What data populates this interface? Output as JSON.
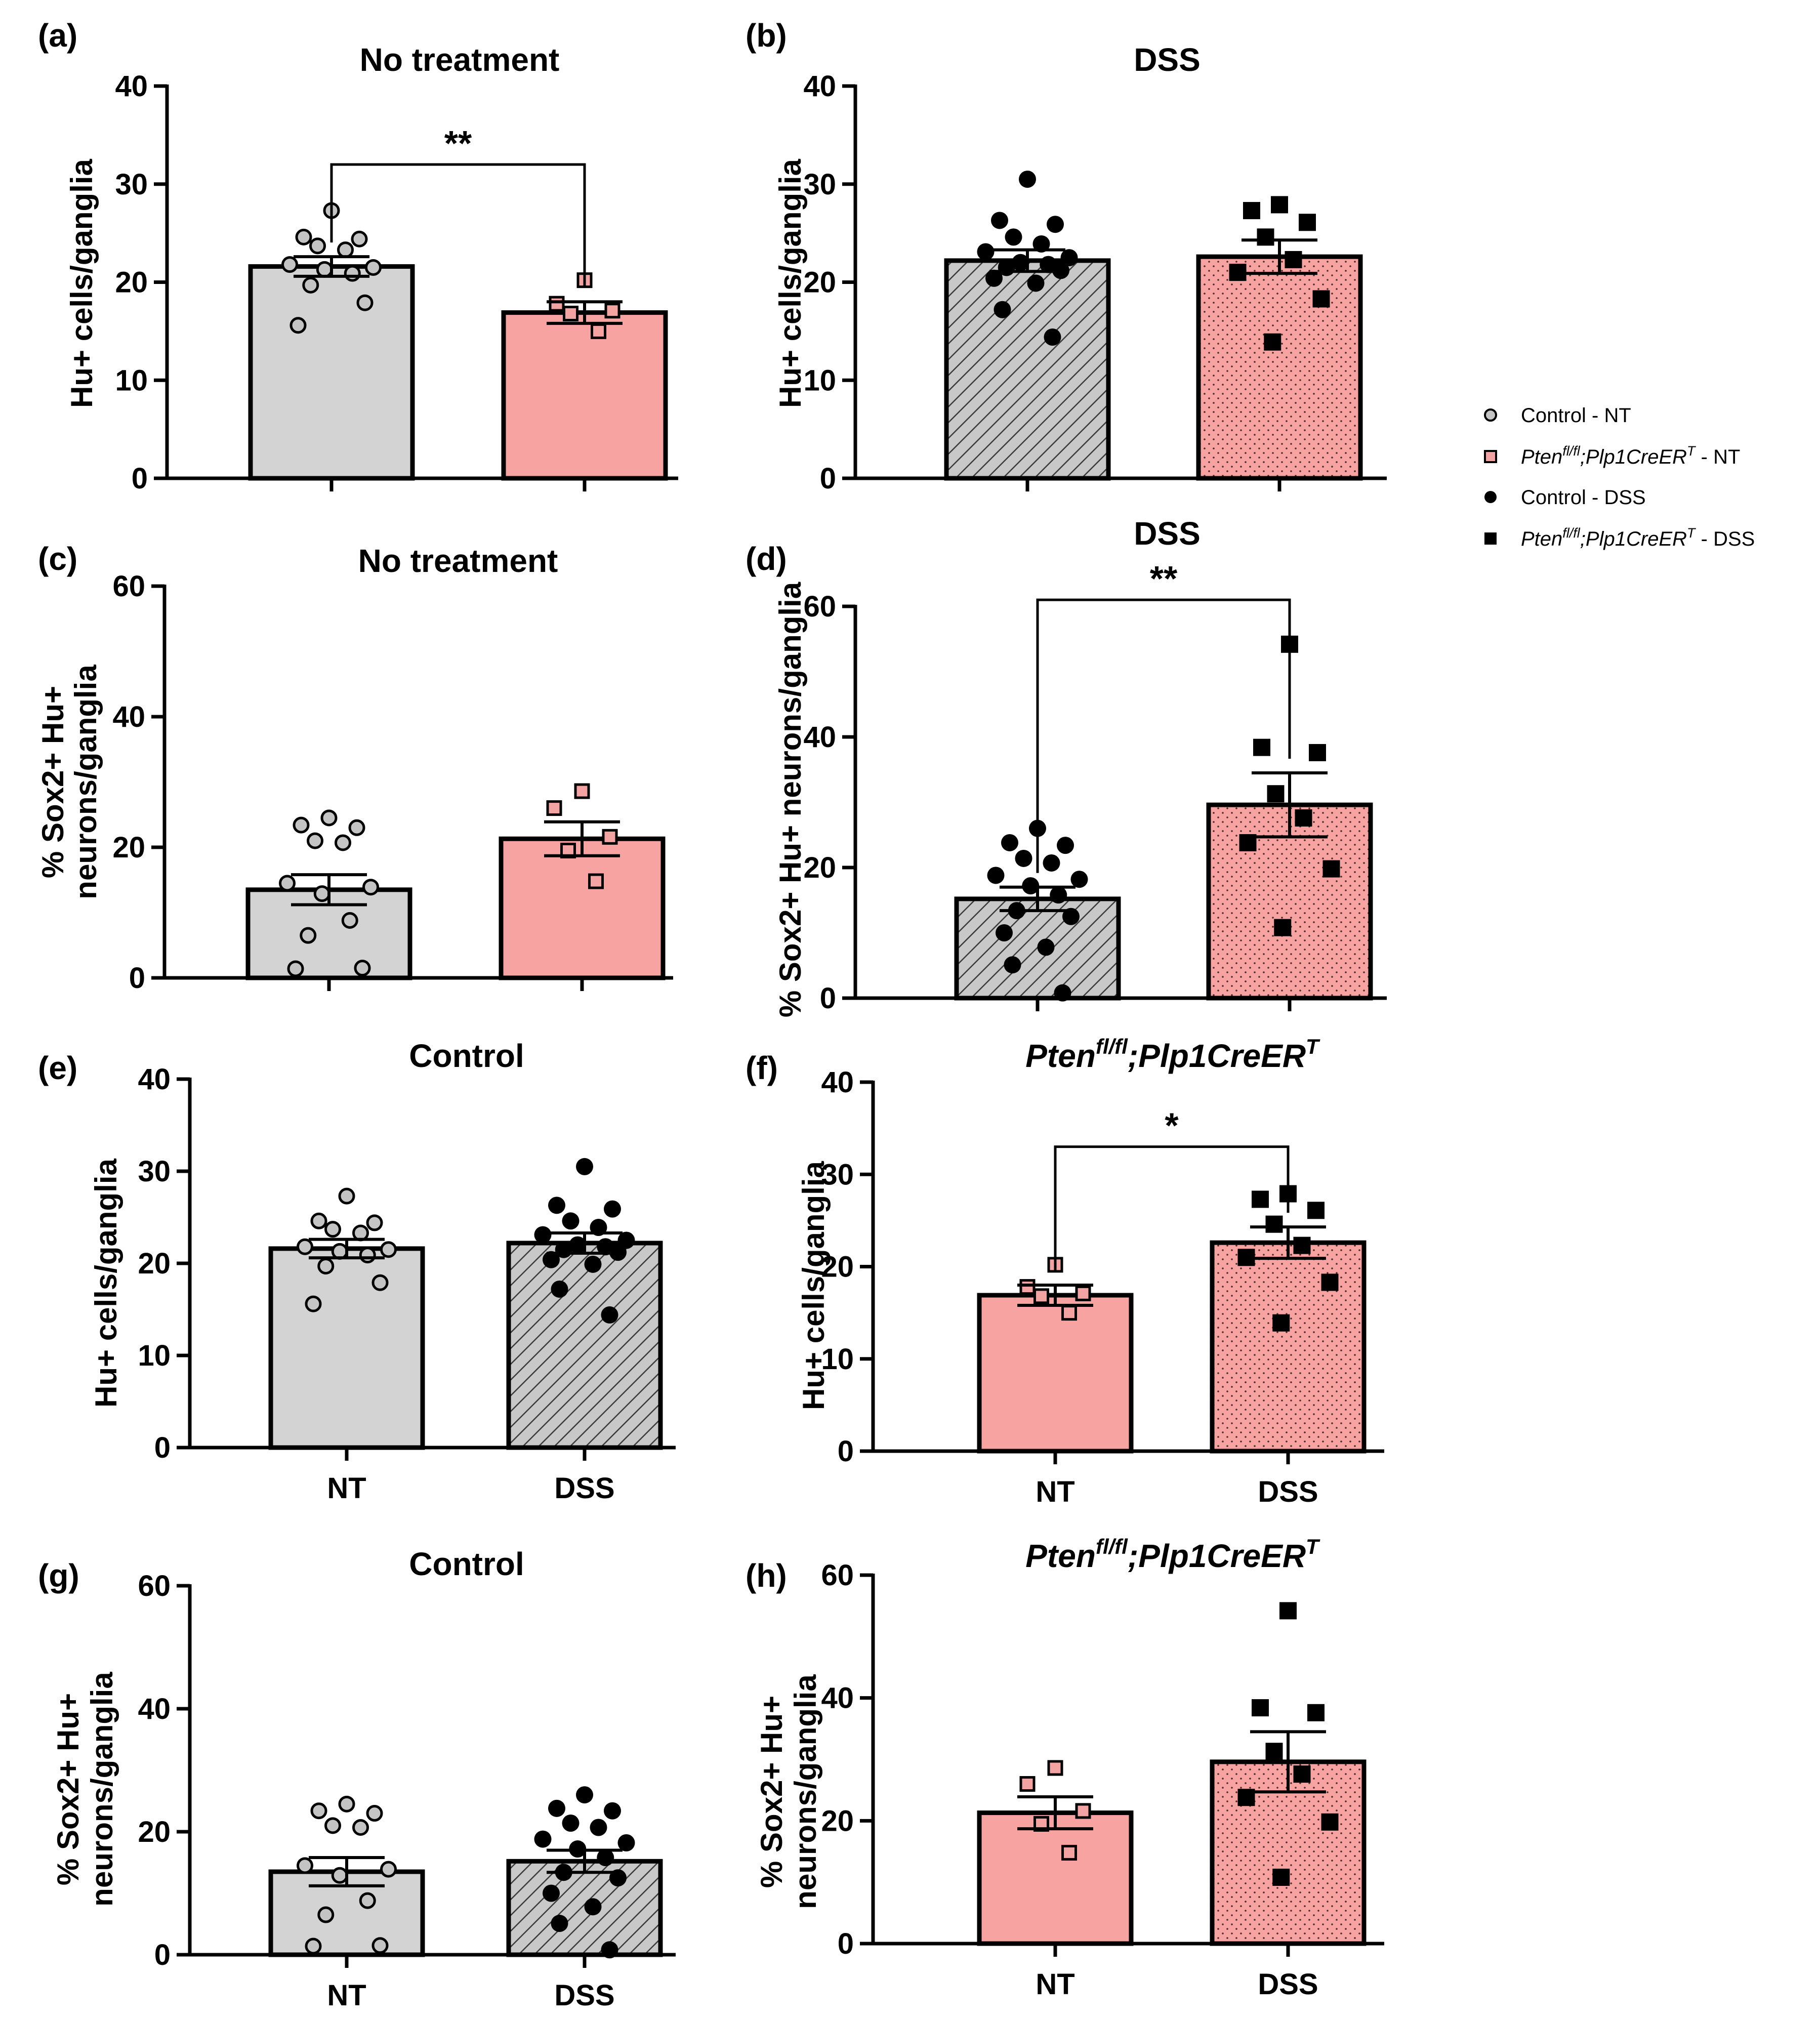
{
  "colors": {
    "control_nt": "#d3d3d3",
    "pten_nt": "#f6a3a1",
    "control_dss": "#c8c8c8",
    "pten_dss": "#f6a3a1",
    "marker_control_nt": "#c4c4c4",
    "marker_pten_nt": "#f4a3a3",
    "marker_dss": "#000000"
  },
  "legend": {
    "items": [
      {
        "key": "control_nt",
        "label": "Control - NT",
        "marker": "circle-open"
      },
      {
        "key": "pten_nt",
        "label_pre": "Pten",
        "label_sup1": "fl/fl",
        "label_mid": ";Plp1CreER",
        "label_sup2": "T",
        "label_post": " - NT",
        "marker": "square-open"
      },
      {
        "key": "control_dss",
        "label": "Control - DSS",
        "marker": "circle-filled"
      },
      {
        "key": "pten_dss",
        "label_pre": "Pten",
        "label_sup1": "fl/fl",
        "label_mid": ";Plp1CreER",
        "label_sup2": "T",
        "label_post": " - DSS",
        "marker": "square-filled"
      }
    ]
  },
  "chart_data": [
    {
      "id": "a",
      "panel_label": "(a)",
      "type": "bar",
      "title": "No treatment",
      "ylabel_lines": [
        "Hu+ cells/ganglia"
      ],
      "ylim": [
        0,
        40
      ],
      "yticks": [
        0,
        10,
        20,
        30,
        40
      ],
      "categories": [
        "",
        ""
      ],
      "bars": [
        {
          "group": "control_nt",
          "mean": 21.6,
          "sem": 1.0,
          "points": [
            27.3,
            24.6,
            24.4,
            23.7,
            23.3,
            21.8,
            21.5,
            21.3,
            20.9,
            19.7,
            17.9,
            15.6
          ]
        },
        {
          "group": "pten_nt",
          "mean": 16.9,
          "sem": 1.1,
          "points": [
            20.2,
            17.8,
            17.1,
            16.8,
            15.0
          ]
        }
      ],
      "significance": {
        "from": 0,
        "to": 1,
        "label": "**",
        "y": 32.0
      }
    },
    {
      "id": "b",
      "panel_label": "(b)",
      "type": "bar",
      "title": "DSS",
      "ylabel_lines": [
        "Hu+ cells/ganglia"
      ],
      "ylim": [
        0,
        40
      ],
      "yticks": [
        0,
        10,
        20,
        30,
        40
      ],
      "categories": [
        "",
        ""
      ],
      "bars": [
        {
          "group": "control_dss",
          "mean": 22.2,
          "sem": 1.1,
          "points": [
            30.5,
            26.3,
            25.9,
            24.6,
            23.9,
            23.1,
            22.5,
            22.0,
            21.8,
            21.5,
            21.2,
            20.4,
            19.9,
            17.2,
            14.4
          ]
        },
        {
          "group": "pten_dss",
          "mean": 22.6,
          "sem": 1.7,
          "points": [
            27.9,
            27.3,
            26.1,
            24.6,
            22.3,
            21.0,
            18.3,
            13.9
          ]
        }
      ],
      "significance": null
    },
    {
      "id": "c",
      "panel_label": "(c)",
      "type": "bar",
      "title": "No treatment",
      "ylabel_lines": [
        "% Sox2+ Hu+",
        "neurons/ganglia"
      ],
      "ylim": [
        0,
        60
      ],
      "yticks": [
        0,
        20,
        40,
        60
      ],
      "categories": [
        "",
        ""
      ],
      "bars": [
        {
          "group": "control_nt",
          "mean": 13.5,
          "sem": 2.3,
          "points": [
            24.5,
            23.4,
            23.0,
            21.0,
            20.7,
            14.5,
            13.9,
            12.9,
            8.8,
            6.5,
            1.5,
            1.4
          ]
        },
        {
          "group": "pten_nt",
          "mean": 21.3,
          "sem": 2.6,
          "points": [
            28.6,
            26.0,
            21.6,
            19.5,
            14.8
          ]
        }
      ],
      "significance": null
    },
    {
      "id": "d",
      "panel_label": "(d)",
      "type": "bar",
      "title": "DSS",
      "ylabel_lines": [
        "% Sox2+ Hu+ neurons/ganglia"
      ],
      "ylim": [
        0,
        60
      ],
      "yticks": [
        0,
        20,
        40,
        60
      ],
      "categories": [
        "",
        ""
      ],
      "bars": [
        {
          "group": "control_dss",
          "mean": 15.2,
          "sem": 1.8,
          "points": [
            26.0,
            23.8,
            23.4,
            21.4,
            20.7,
            18.8,
            18.2,
            17.2,
            15.8,
            13.4,
            12.5,
            10.0,
            7.8,
            5.1,
            0.8
          ]
        },
        {
          "group": "pten_dss",
          "mean": 29.6,
          "sem": 4.9,
          "points": [
            54.2,
            38.4,
            37.6,
            31.3,
            27.6,
            23.8,
            19.8,
            10.8
          ]
        }
      ],
      "significance": {
        "from": 0,
        "to": 1,
        "label": "**",
        "y": 61.0
      }
    },
    {
      "id": "e",
      "panel_label": "(e)",
      "type": "bar",
      "title": "Control",
      "ylabel_lines": [
        "Hu+ cells/ganglia"
      ],
      "ylim": [
        0,
        40
      ],
      "yticks": [
        0,
        10,
        20,
        30,
        40
      ],
      "categories": [
        "NT",
        "DSS"
      ],
      "bars": [
        {
          "group": "control_nt",
          "mean": 21.6,
          "sem": 1.0,
          "points": [
            27.3,
            24.6,
            24.4,
            23.7,
            23.3,
            21.8,
            21.5,
            21.3,
            20.9,
            19.7,
            17.9,
            15.6
          ]
        },
        {
          "group": "control_dss",
          "mean": 22.2,
          "sem": 1.1,
          "points": [
            30.5,
            26.3,
            25.9,
            24.6,
            23.9,
            23.1,
            22.5,
            22.0,
            21.8,
            21.5,
            21.2,
            20.4,
            19.9,
            17.2,
            14.4
          ]
        }
      ],
      "significance": null
    },
    {
      "id": "f",
      "panel_label": "(f)",
      "type": "bar",
      "title_pre": "Pten",
      "title_sup1": "fl/fl",
      "title_mid": ";Plp1CreER",
      "title_sup2": "T",
      "ylabel_lines": [
        "Hu+ cells/ganglia"
      ],
      "ylim": [
        0,
        40
      ],
      "yticks": [
        0,
        10,
        20,
        30,
        40
      ],
      "categories": [
        "NT",
        "DSS"
      ],
      "bars": [
        {
          "group": "pten_nt",
          "mean": 16.9,
          "sem": 1.1,
          "points": [
            20.2,
            17.8,
            17.1,
            16.8,
            15.0
          ]
        },
        {
          "group": "pten_dss",
          "mean": 22.6,
          "sem": 1.7,
          "points": [
            27.9,
            27.3,
            26.1,
            24.6,
            22.3,
            21.0,
            18.3,
            13.9
          ]
        }
      ],
      "significance": {
        "from": 0,
        "to": 1,
        "label": "*",
        "y": 33.0
      }
    },
    {
      "id": "g",
      "panel_label": "(g)",
      "type": "bar",
      "title": "Control",
      "ylabel_lines": [
        "% Sox2+ Hu+",
        "neurons/ganglia"
      ],
      "ylim": [
        0,
        60
      ],
      "yticks": [
        0,
        20,
        40,
        60
      ],
      "categories": [
        "NT",
        "DSS"
      ],
      "bars": [
        {
          "group": "control_nt",
          "mean": 13.5,
          "sem": 2.3,
          "points": [
            24.5,
            23.4,
            23.0,
            21.0,
            20.7,
            14.5,
            13.9,
            12.9,
            8.8,
            6.5,
            1.5,
            1.4
          ]
        },
        {
          "group": "control_dss",
          "mean": 15.2,
          "sem": 1.8,
          "points": [
            26.0,
            23.8,
            23.4,
            21.4,
            20.7,
            18.8,
            18.2,
            17.2,
            15.8,
            13.4,
            12.5,
            10.0,
            7.8,
            5.1,
            0.8
          ]
        }
      ],
      "significance": null
    },
    {
      "id": "h",
      "panel_label": "(h)",
      "type": "bar",
      "title_pre": "Pten",
      "title_sup1": "fl/fl",
      "title_mid": ";Plp1CreER",
      "title_sup2": "T",
      "ylabel_lines": [
        "% Sox2+ Hu+",
        "neurons/ganglia"
      ],
      "ylim": [
        0,
        60
      ],
      "yticks": [
        0,
        20,
        40,
        60
      ],
      "categories": [
        "NT",
        "DSS"
      ],
      "bars": [
        {
          "group": "pten_nt",
          "mean": 21.3,
          "sem": 2.6,
          "points": [
            28.6,
            26.0,
            21.6,
            19.5,
            14.8
          ]
        },
        {
          "group": "pten_dss",
          "mean": 29.6,
          "sem": 4.9,
          "points": [
            54.2,
            38.4,
            37.6,
            31.3,
            27.6,
            23.8,
            19.8,
            10.8
          ]
        }
      ],
      "significance": null
    }
  ]
}
